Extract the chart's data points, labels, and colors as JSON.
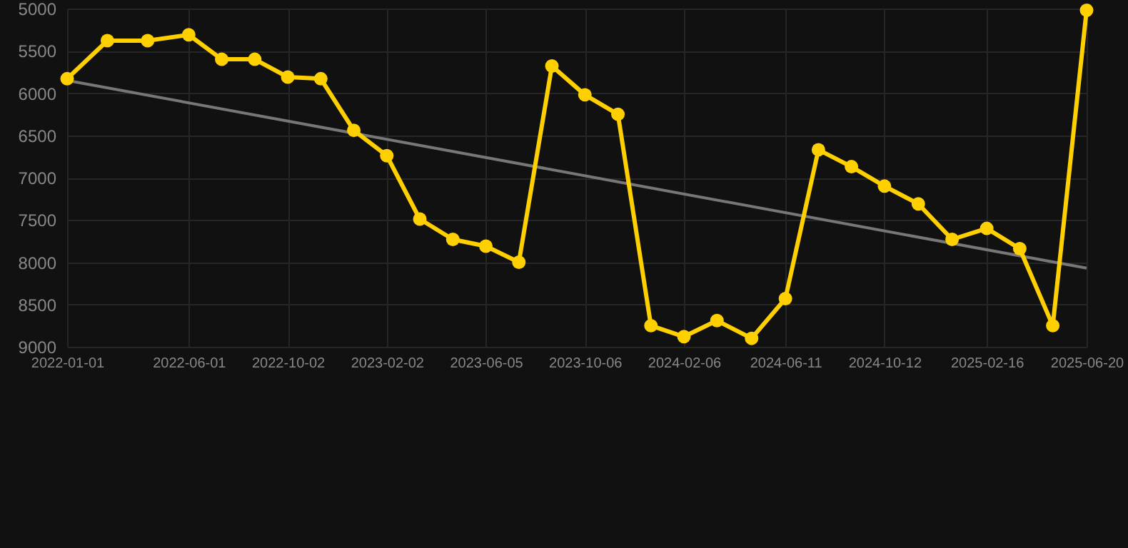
{
  "chart_data": {
    "type": "line",
    "x": [
      "2022-01-01",
      "2022-02-20",
      "2022-04-11",
      "2022-06-01",
      "2022-07-12",
      "2022-08-22",
      "2022-10-02",
      "2022-11-12",
      "2022-12-23",
      "2023-02-02",
      "2023-03-15",
      "2023-04-25",
      "2023-06-05",
      "2023-07-16",
      "2023-08-26",
      "2023-10-06",
      "2023-11-16",
      "2023-12-27",
      "2024-02-06",
      "2024-03-18",
      "2024-04-30",
      "2024-06-11",
      "2024-07-22",
      "2024-09-01",
      "2024-10-12",
      "2024-11-23",
      "2025-01-04",
      "2025-02-16",
      "2025-03-29",
      "2025-05-09",
      "2025-06-20"
    ],
    "series": [
      {
        "color": "#ffd000",
        "marker": "circle",
        "values": [
          5830,
          5380,
          5380,
          5310,
          5600,
          5600,
          5810,
          5830,
          6440,
          6740,
          7490,
          7730,
          7810,
          8000,
          5680,
          6020,
          6250,
          8750,
          8880,
          8690,
          8900,
          8430,
          6670,
          6870,
          7100,
          7310,
          7730,
          7600,
          7840,
          8750,
          5020
        ]
      },
      {
        "type": "line",
        "color": "#777777",
        "marker": "none",
        "x": [
          "2022-01-01",
          "2025-06-20"
        ],
        "values": [
          5850,
          8070
        ]
      }
    ],
    "ylim": [
      9000,
      5000
    ],
    "yticks": [
      5000,
      5500,
      6000,
      6500,
      7000,
      7500,
      8000,
      8500,
      9000
    ],
    "xlim": [
      "2022-01-01",
      "2025-06-20"
    ],
    "xticks": [
      "2022-01-01",
      "2022-06-01",
      "2022-10-02",
      "2023-02-02",
      "2023-06-05",
      "2023-10-06",
      "2024-02-06",
      "2024-06-11",
      "2024-10-12",
      "2025-02-16",
      "2025-06-20"
    ],
    "grid": true
  }
}
